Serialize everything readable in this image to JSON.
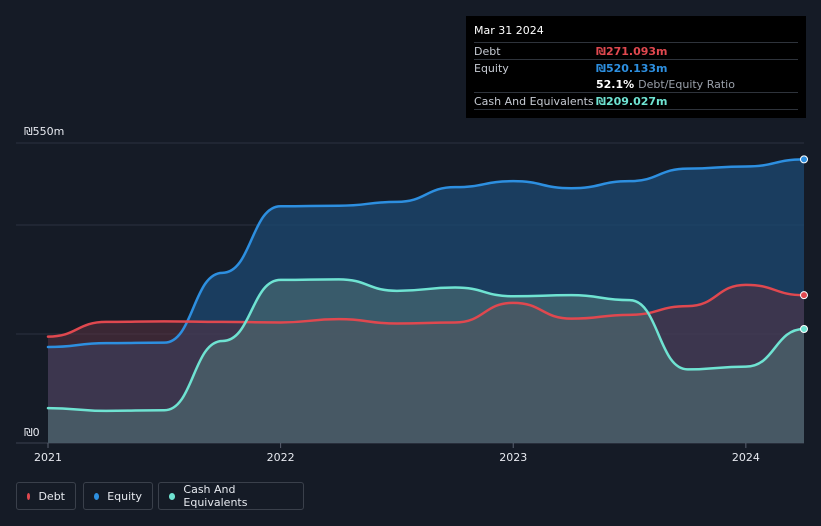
{
  "tooltip": {
    "date": "Mar 31 2024",
    "debt_label": "Debt",
    "debt_value": "₪271.093m",
    "equity_label": "Equity",
    "equity_value": "₪520.133m",
    "ratio_value": "52.1%",
    "ratio_label": "Debt/Equity Ratio",
    "cash_label": "Cash And Equivalents",
    "cash_value": "₪209.027m"
  },
  "legend": {
    "debt": "Debt",
    "equity": "Equity",
    "cash": "Cash And Equivalents"
  },
  "colors": {
    "debt": "#e0484f",
    "equity": "#2d8fe0",
    "cash": "#6fe3d2",
    "background": "#151b26"
  },
  "chart_data": {
    "type": "area",
    "ylim": [
      0,
      550
    ],
    "y_ticks": [
      {
        "value": 550,
        "label": "₪550m"
      },
      {
        "value": 0,
        "label": "₪0"
      }
    ],
    "x_ticks": [
      {
        "value": 2021,
        "label": "2021"
      },
      {
        "value": 2022,
        "label": "2022"
      },
      {
        "value": 2023,
        "label": "2023"
      },
      {
        "value": 2024,
        "label": "2024"
      }
    ],
    "xlim": [
      2021,
      2024.25
    ],
    "grid": true,
    "series": [
      {
        "name": "Debt",
        "key": "debt",
        "points": [
          [
            2021.0,
            195
          ],
          [
            2021.25,
            222
          ],
          [
            2021.5,
            223
          ],
          [
            2021.75,
            222
          ],
          [
            2022.0,
            221
          ],
          [
            2022.25,
            227
          ],
          [
            2022.5,
            219
          ],
          [
            2022.75,
            221
          ],
          [
            2023.0,
            257
          ],
          [
            2023.25,
            228
          ],
          [
            2023.5,
            235
          ],
          [
            2023.75,
            251
          ],
          [
            2024.0,
            290
          ],
          [
            2024.25,
            271
          ]
        ]
      },
      {
        "name": "Equity",
        "key": "equity",
        "points": [
          [
            2021.0,
            176
          ],
          [
            2021.25,
            183
          ],
          [
            2021.5,
            184
          ],
          [
            2021.75,
            312
          ],
          [
            2022.0,
            434
          ],
          [
            2022.25,
            435
          ],
          [
            2022.5,
            442
          ],
          [
            2022.75,
            469
          ],
          [
            2023.0,
            480
          ],
          [
            2023.25,
            467
          ],
          [
            2023.5,
            480
          ],
          [
            2023.75,
            503
          ],
          [
            2024.0,
            507
          ],
          [
            2024.25,
            520
          ]
        ]
      },
      {
        "name": "Cash And Equivalents",
        "key": "cash",
        "points": [
          [
            2021.0,
            64
          ],
          [
            2021.25,
            59
          ],
          [
            2021.5,
            60
          ],
          [
            2021.75,
            187
          ],
          [
            2022.0,
            299
          ],
          [
            2022.25,
            300
          ],
          [
            2022.5,
            279
          ],
          [
            2022.75,
            285
          ],
          [
            2023.0,
            269
          ],
          [
            2023.25,
            271
          ],
          [
            2023.5,
            262
          ],
          [
            2023.75,
            135
          ],
          [
            2024.0,
            140
          ],
          [
            2024.25,
            209
          ]
        ]
      }
    ]
  }
}
